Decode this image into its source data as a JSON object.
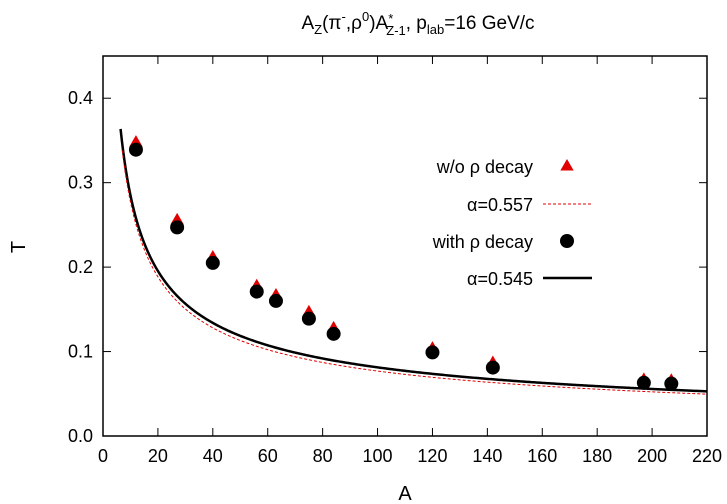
{
  "chart_data": {
    "type": "scatter",
    "title": {
      "main": "A",
      "sub1": "Z",
      "mid1": "(π",
      "sup1": "-",
      "mid2": ",ρ",
      "sup2": "0",
      "mid3": ")A",
      "sup3": "*",
      "sub3": "Z-1",
      "mid4": ", p",
      "sub4": "lab",
      "tail": "=16 GeV/c"
    },
    "xlabel": "A",
    "ylabel": "T",
    "xlim": [
      0,
      220
    ],
    "ylim": [
      0.0,
      0.45
    ],
    "x_ticks": [
      "0",
      "20",
      "40",
      "60",
      "80",
      "100",
      "120",
      "140",
      "160",
      "180",
      "200",
      "220"
    ],
    "y_ticks": [
      "0.0",
      "0.1",
      "0.2",
      "0.3",
      "0.4"
    ],
    "legend_position": "right-middle",
    "series": [
      {
        "name": "w/o ρ decay",
        "kind": "points",
        "marker": "triangle",
        "color": "#e00000",
        "x": [
          12,
          27,
          40,
          56,
          63,
          75,
          84,
          120,
          142,
          197,
          207
        ],
        "y": [
          0.348,
          0.256,
          0.212,
          0.178,
          0.167,
          0.147,
          0.128,
          0.104,
          0.087,
          0.067,
          0.066
        ]
      },
      {
        "name": "α=0.557",
        "kind": "curve",
        "style": "dashed",
        "color": "#e00000",
        "exponent": 0.557,
        "x_start": 7
      },
      {
        "name": "with ρ decay",
        "kind": "points",
        "marker": "circle",
        "color": "#000000",
        "x": [
          12,
          27,
          40,
          56,
          63,
          75,
          84,
          120,
          142,
          197,
          207
        ],
        "y": [
          0.339,
          0.247,
          0.205,
          0.171,
          0.16,
          0.139,
          0.121,
          0.099,
          0.081,
          0.063,
          0.062
        ]
      },
      {
        "name": "α=0.545",
        "kind": "curve",
        "style": "solid",
        "color": "#000000",
        "exponent": 0.545,
        "x_start": 6.4
      }
    ]
  }
}
